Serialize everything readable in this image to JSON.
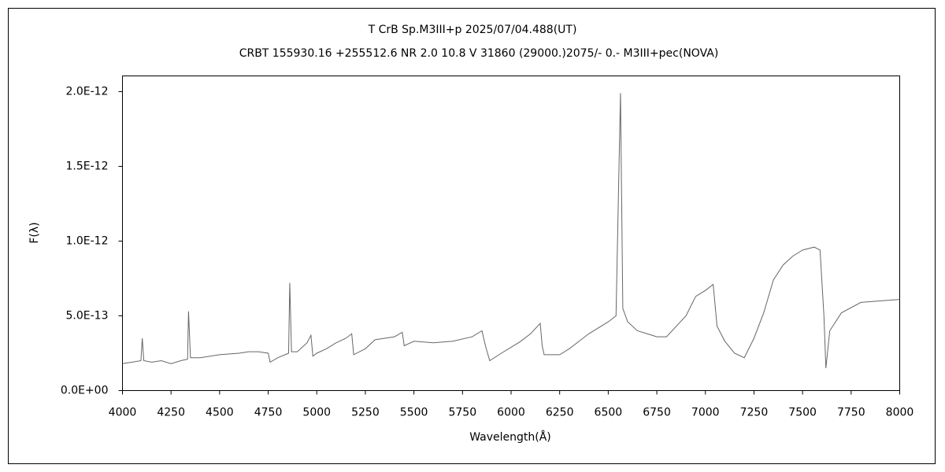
{
  "chart_data": {
    "type": "line",
    "title": "T CrB   Sp.M3III+p   2025/07/04.488(UT)",
    "subtitle": "CRBT 155930.16 +255512.6 NR 2.0 10.8 V 31860 (29000.)2075/-  0.- M3III+pec(NOVA)",
    "x_label": "Wavelength(Å)",
    "y_label": "F(λ)",
    "color": "#666666",
    "x": [
      4000,
      4050,
      4095,
      4102,
      4110,
      4150,
      4200,
      4250,
      4300,
      4335,
      4340,
      4350,
      4400,
      4500,
      4600,
      4650,
      4700,
      4750,
      4760,
      4800,
      4855,
      4861,
      4870,
      4900,
      4950,
      4970,
      4980,
      5000,
      5050,
      5100,
      5150,
      5180,
      5190,
      5250,
      5300,
      5350,
      5400,
      5440,
      5450,
      5500,
      5600,
      5700,
      5800,
      5850,
      5870,
      5890,
      5950,
      6000,
      6050,
      6100,
      6150,
      6160,
      6170,
      6250,
      6300,
      6350,
      6400,
      6450,
      6500,
      6540,
      6563,
      6575,
      6600,
      6650,
      6700,
      6750,
      6800,
      6850,
      6900,
      6950,
      7000,
      7040,
      7060,
      7100,
      7150,
      7200,
      7250,
      7300,
      7350,
      7400,
      7450,
      7500,
      7560,
      7590,
      7610,
      7620,
      7640,
      7700,
      7800,
      7900,
      8000
    ],
    "values": [
      1.8e-13,
      1.9e-13,
      2e-13,
      3.5e-13,
      2e-13,
      1.9e-13,
      2e-13,
      1.8e-13,
      2e-13,
      2.1e-13,
      5.3e-13,
      2.2e-13,
      2.2e-13,
      2.4e-13,
      2.5e-13,
      2.6e-13,
      2.6e-13,
      2.5e-13,
      1.9e-13,
      2.2e-13,
      2.5e-13,
      7.2e-13,
      2.6e-13,
      2.6e-13,
      3.2e-13,
      3.7e-13,
      2.3e-13,
      2.5e-13,
      2.8e-13,
      3.2e-13,
      3.5e-13,
      3.8e-13,
      2.4e-13,
      2.8e-13,
      3.4e-13,
      3.5e-13,
      3.6e-13,
      3.9e-13,
      3e-13,
      3.3e-13,
      3.2e-13,
      3.3e-13,
      3.6e-13,
      4e-13,
      2.9e-13,
      2e-13,
      2.5e-13,
      2.9e-13,
      3.3e-13,
      3.8e-13,
      4.5e-13,
      3e-13,
      2.4e-13,
      2.4e-13,
      2.8e-13,
      3.3e-13,
      3.8e-13,
      4.2e-13,
      4.6e-13,
      5e-13,
      1.99e-12,
      5.5e-13,
      4.6e-13,
      4e-13,
      3.8e-13,
      3.6e-13,
      3.6e-13,
      4.3e-13,
      5e-13,
      6.3e-13,
      6.7e-13,
      7.1e-13,
      4.3e-13,
      3.3e-13,
      2.5e-13,
      2.2e-13,
      3.5e-13,
      5.2e-13,
      7.4e-13,
      8.4e-13,
      9e-13,
      9.4e-13,
      9.6e-13,
      9.4e-13,
      5e-13,
      1.5e-13,
      4e-13,
      5.2e-13,
      5.9e-13,
      6e-13,
      6.1e-13
    ],
    "xlim": [
      4000,
      8000
    ],
    "xticks": [
      4000,
      4250,
      4500,
      4750,
      5000,
      5250,
      5500,
      5750,
      6000,
      6250,
      6500,
      6750,
      7000,
      7250,
      7500,
      7750,
      8000
    ],
    "ylim": [
      0,
      2.105e-12
    ],
    "yticks": [
      {
        "value": 0,
        "label": "0.0E+00"
      },
      {
        "value": 5e-13,
        "label": "5.0E-13"
      },
      {
        "value": 1e-12,
        "label": "1.0E-12"
      },
      {
        "value": 1.5e-12,
        "label": "1.5E-12"
      },
      {
        "value": 2e-12,
        "label": "2.0E-12"
      }
    ]
  }
}
